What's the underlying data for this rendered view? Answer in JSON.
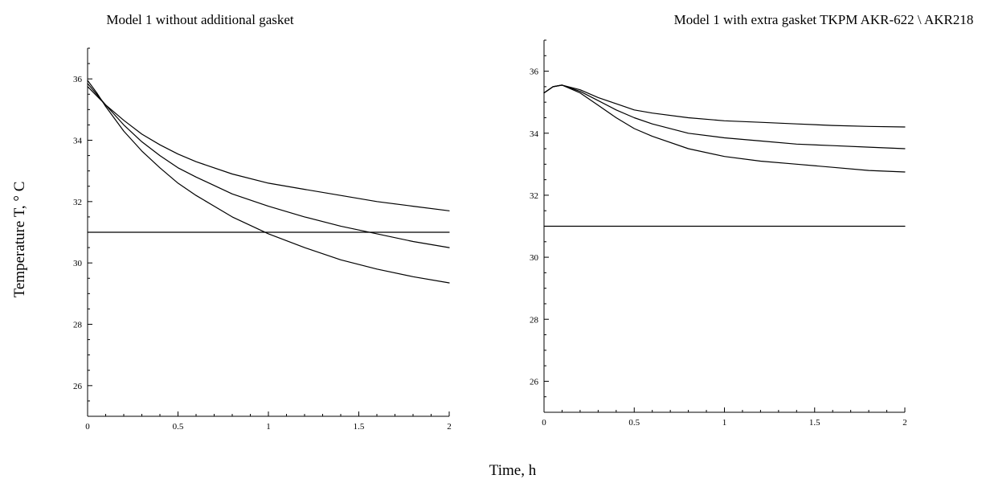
{
  "chart_data": {
    "type": "line",
    "shared_xlabel": "Time, h",
    "shared_ylabel": "Temperature T, ° C",
    "colors": {
      "line": "#000000",
      "background": "#ffffff"
    },
    "panels": [
      {
        "title": "Model 1 without additional gasket",
        "xlim": [
          0,
          2
        ],
        "ylim": [
          25,
          37
        ],
        "x_ticks": [
          0,
          0.5,
          1,
          1.5,
          2
        ],
        "x_tick_labels": [
          "0",
          "0.5",
          "1",
          "1.5",
          "2"
        ],
        "y_ticks": [
          26,
          28,
          30,
          32,
          34,
          36
        ],
        "y_tick_labels": [
          "26",
          "28",
          "30",
          "32",
          "34",
          "36"
        ],
        "x": [
          0,
          0.05,
          0.1,
          0.2,
          0.3,
          0.4,
          0.5,
          0.6,
          0.8,
          1.0,
          1.2,
          1.4,
          1.6,
          1.8,
          2.0
        ],
        "series": [
          {
            "values": [
              35.75,
              35.45,
              35.15,
              34.65,
              34.2,
              33.85,
              33.55,
              33.3,
              32.9,
              32.6,
              32.4,
              32.2,
              32.0,
              31.85,
              31.7
            ]
          },
          {
            "values": [
              35.85,
              35.5,
              35.15,
              34.5,
              33.95,
              33.5,
              33.1,
              32.8,
              32.25,
              31.85,
              31.5,
              31.2,
              30.95,
              30.7,
              30.5
            ]
          },
          {
            "values": [
              35.95,
              35.55,
              35.1,
              34.3,
              33.65,
              33.1,
              32.6,
              32.2,
              31.5,
              30.95,
              30.5,
              30.1,
              29.8,
              29.55,
              29.35
            ]
          },
          {
            "values": [
              31.0,
              31.0,
              31.0,
              31.0,
              31.0,
              31.0,
              31.0,
              31.0,
              31.0,
              31.0,
              31.0,
              31.0,
              31.0,
              31.0,
              31.0
            ]
          }
        ]
      },
      {
        "title": "Model 1 with extra gasket TKPM AKR-622 \\ AKR218",
        "xlim": [
          0,
          2
        ],
        "ylim": [
          25,
          37
        ],
        "x_ticks": [
          0,
          0.5,
          1,
          1.5,
          2
        ],
        "x_tick_labels": [
          "0",
          "0.5",
          "1",
          "1.5",
          "2"
        ],
        "y_ticks": [
          26,
          28,
          30,
          32,
          34,
          36
        ],
        "y_tick_labels": [
          "26",
          "28",
          "30",
          "32",
          "34",
          "36"
        ],
        "x": [
          0,
          0.05,
          0.1,
          0.2,
          0.3,
          0.4,
          0.5,
          0.6,
          0.8,
          1.0,
          1.2,
          1.4,
          1.6,
          1.8,
          2.0
        ],
        "series": [
          {
            "values": [
              35.3,
              35.5,
              35.55,
              35.4,
              35.15,
              34.95,
              34.75,
              34.65,
              34.5,
              34.4,
              34.35,
              34.3,
              34.25,
              34.22,
              34.2
            ]
          },
          {
            "values": [
              35.3,
              35.5,
              35.55,
              35.35,
              35.05,
              34.75,
              34.5,
              34.3,
              34.0,
              33.85,
              33.75,
              33.65,
              33.6,
              33.55,
              33.5
            ]
          },
          {
            "values": [
              35.3,
              35.5,
              35.55,
              35.3,
              34.9,
              34.5,
              34.15,
              33.9,
              33.5,
              33.25,
              33.1,
              33.0,
              32.9,
              32.8,
              32.75
            ]
          },
          {
            "values": [
              31.0,
              31.0,
              31.0,
              31.0,
              31.0,
              31.0,
              31.0,
              31.0,
              31.0,
              31.0,
              31.0,
              31.0,
              31.0,
              31.0,
              31.0
            ]
          }
        ]
      }
    ]
  }
}
